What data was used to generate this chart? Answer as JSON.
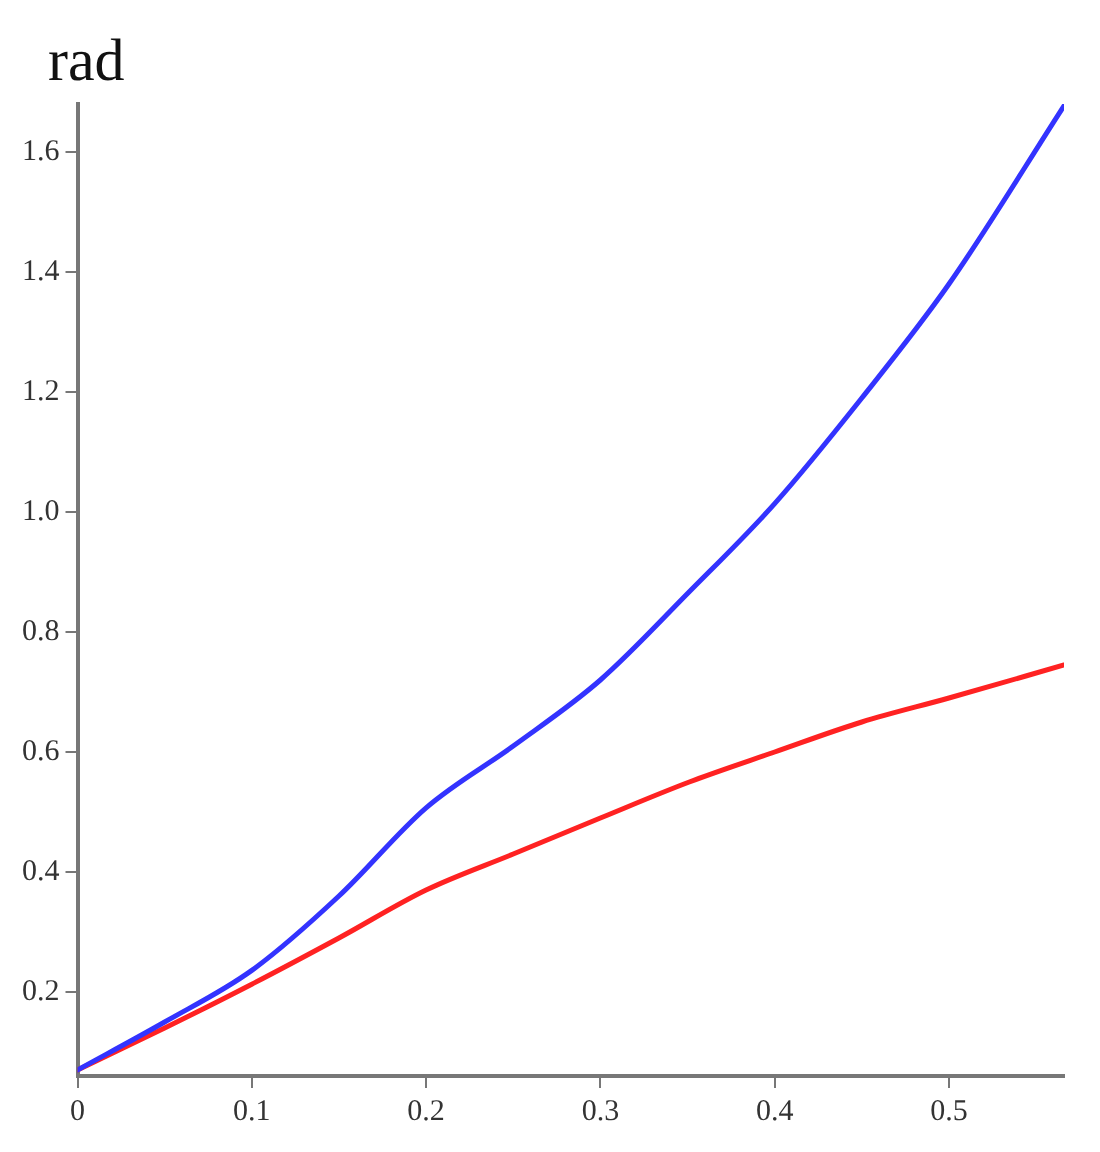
{
  "chart_data": {
    "type": "line",
    "ylabel": "rad",
    "x": [
      0,
      0.05,
      0.1,
      0.15,
      0.2,
      0.25,
      0.3,
      0.351,
      0.4,
      0.45,
      0.5,
      0.566
    ],
    "series": [
      {
        "color": "#3333ff",
        "values": [
          0.07,
          0.15,
          0.236,
          0.36,
          0.507,
          0.61,
          0.72,
          0.867,
          1.014,
          1.19,
          1.38,
          1.677
        ]
      },
      {
        "color": "#ff2222",
        "values": [
          0.07,
          0.14,
          0.213,
          0.29,
          0.37,
          0.43,
          0.49,
          0.55,
          0.6,
          0.65,
          0.69,
          0.745
        ]
      }
    ],
    "xlim": [
      0,
      0.566
    ],
    "ylim": [
      0.06,
      1.68
    ],
    "xticks": [
      0,
      0.1,
      0.2,
      0.3,
      0.4,
      0.5
    ],
    "yticks": [
      0.2,
      0.4,
      0.6,
      0.8,
      {
        "value": 1.0,
        "label": "1.0"
      },
      1.2,
      1.4,
      1.6
    ],
    "grid": false,
    "legend": false,
    "marker": "none",
    "line_style": "solid"
  }
}
